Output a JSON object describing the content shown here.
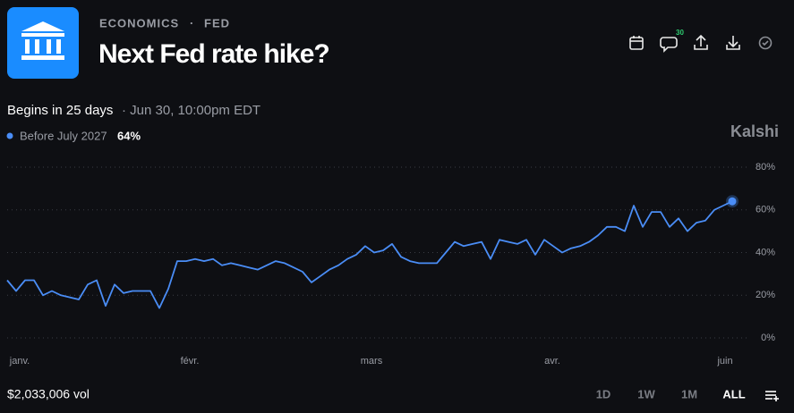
{
  "header": {
    "category": "ECONOMICS",
    "separator": "·",
    "subcategory": "FED",
    "title": "Next Fed rate hike?",
    "comment_count": "30"
  },
  "status": {
    "begins": "Begins in 25 days",
    "date": "· Jun 30, 10:00pm EDT"
  },
  "brand": "Kalshi",
  "footer": {
    "volume": "$2,033,006 vol",
    "ranges": [
      "1D",
      "1W",
      "1M",
      "ALL"
    ],
    "active_range": "ALL"
  },
  "chart_data": {
    "type": "line",
    "x": [
      0,
      1,
      2,
      3,
      4,
      5,
      6,
      7,
      8,
      9,
      10,
      11,
      12,
      13,
      14,
      15,
      16,
      17,
      18,
      19,
      20,
      21,
      22,
      23,
      24,
      25,
      26,
      27,
      28,
      29,
      30,
      31,
      32,
      33,
      34,
      35,
      36,
      37,
      38,
      39,
      40,
      41,
      42,
      43,
      44,
      45,
      46,
      47,
      48,
      49,
      50,
      51,
      52,
      53,
      54,
      55,
      56,
      57,
      58,
      59,
      60,
      61,
      62,
      63,
      64,
      65,
      66,
      67,
      68,
      69,
      70,
      71,
      72,
      73,
      74,
      75,
      76,
      77,
      78,
      79,
      80,
      81
    ],
    "series": [
      {
        "name": "Before July 2027",
        "color": "#4a8df6",
        "current_value": 64,
        "current_value_label": "64%",
        "values": [
          27,
          22,
          27,
          27,
          20,
          22,
          20,
          19,
          18,
          25,
          27,
          15,
          25,
          21,
          22,
          22,
          22,
          14,
          23,
          36,
          36,
          37,
          36,
          37,
          34,
          35,
          34,
          33,
          32,
          34,
          36,
          35,
          33,
          31,
          26,
          29,
          32,
          34,
          37,
          39,
          43,
          40,
          41,
          44,
          38,
          36,
          35,
          35,
          35,
          40,
          45,
          43,
          44,
          45,
          37,
          46,
          45,
          44,
          46,
          39,
          46,
          43,
          40,
          42,
          43,
          45,
          48,
          52,
          52,
          50,
          62,
          52,
          59,
          59,
          52,
          56,
          50,
          54,
          55,
          60,
          62,
          64
        ]
      }
    ],
    "xlim": [
      0,
      83
    ],
    "xticks": [
      {
        "value": 1.4,
        "label": "janv."
      },
      {
        "value": 20.4,
        "label": "févr."
      },
      {
        "value": 40.7,
        "label": "mars"
      },
      {
        "value": 60.9,
        "label": "avr."
      },
      {
        "value": 80.2,
        "label": "juin"
      }
    ],
    "ylim": [
      0,
      80
    ],
    "yticks": [
      {
        "value": 0,
        "label": "0%"
      },
      {
        "value": 20,
        "label": "20%"
      },
      {
        "value": 40,
        "label": "40%"
      },
      {
        "value": 60,
        "label": "60%"
      },
      {
        "value": 80,
        "label": "80%"
      }
    ],
    "grid": true
  }
}
